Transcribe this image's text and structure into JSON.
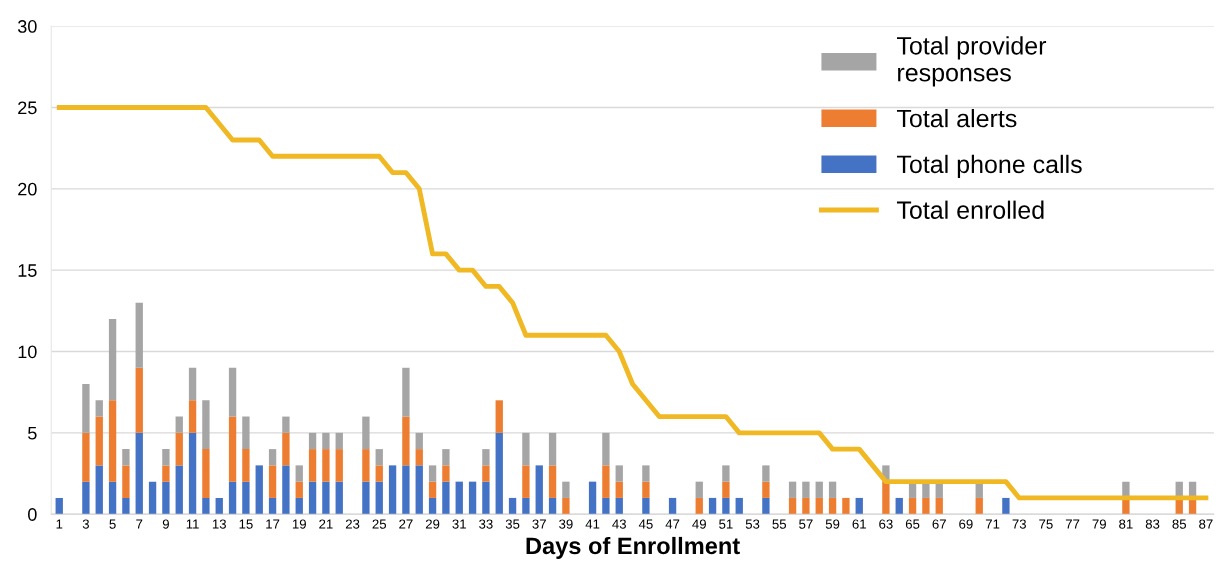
{
  "chart_data": {
    "type": "bar",
    "stacked": true,
    "xlabel": "Days of Enrollment",
    "categories": [
      "1",
      null,
      "3",
      null,
      "5",
      null,
      "7",
      null,
      "9",
      null,
      "11",
      null,
      "13",
      null,
      "15",
      null,
      "17",
      null,
      "19",
      null,
      "21",
      null,
      "23",
      null,
      "25",
      null,
      "27",
      null,
      "29",
      null,
      "31",
      null,
      "33",
      null,
      "35",
      null,
      "37",
      null,
      "39",
      null,
      "41",
      null,
      "43",
      null,
      "45",
      null,
      "47",
      null,
      "49",
      null,
      "51",
      null,
      "53",
      null,
      "55",
      null,
      "57",
      null,
      "59",
      null,
      "61",
      null,
      "63",
      null,
      "65",
      null,
      "67",
      null,
      "69",
      null,
      "71",
      null,
      "73",
      null,
      "75",
      null,
      "77",
      null,
      "79",
      null,
      "81",
      null,
      "83",
      null,
      "85",
      null,
      "87"
    ],
    "series": [
      {
        "name": "Total phone calls",
        "color": "#4472c4",
        "values": [
          1,
          null,
          2,
          3,
          2,
          1,
          5,
          2,
          2,
          3,
          5,
          1,
          1,
          2,
          2,
          3,
          1,
          3,
          1,
          2,
          2,
          2,
          null,
          2,
          2,
          3,
          3,
          3,
          1,
          2,
          2,
          2,
          2,
          5,
          1,
          1,
          3,
          1,
          null,
          null,
          2,
          1,
          1,
          null,
          1,
          null,
          1,
          null,
          null,
          1,
          1,
          1,
          null,
          1,
          null,
          null,
          null,
          null,
          null,
          null,
          1,
          null,
          null,
          1,
          null,
          null,
          null,
          null,
          null,
          null,
          null,
          1,
          null,
          null,
          null,
          null,
          null,
          null,
          null,
          null,
          null,
          null,
          null,
          null,
          null,
          null,
          null
        ]
      },
      {
        "name": "Total alerts",
        "color": "#ed7d31",
        "values": [
          null,
          null,
          3,
          3,
          5,
          2,
          4,
          null,
          1,
          2,
          2,
          3,
          null,
          4,
          2,
          null,
          2,
          2,
          1,
          2,
          2,
          2,
          null,
          2,
          1,
          null,
          3,
          1,
          1,
          1,
          null,
          null,
          1,
          2,
          null,
          2,
          null,
          2,
          1,
          null,
          null,
          2,
          1,
          null,
          1,
          null,
          null,
          null,
          1,
          null,
          1,
          null,
          null,
          1,
          null,
          1,
          1,
          1,
          1,
          1,
          null,
          null,
          2,
          null,
          1,
          1,
          1,
          null,
          null,
          1,
          null,
          null,
          null,
          null,
          null,
          null,
          null,
          null,
          null,
          null,
          1,
          null,
          null,
          null,
          1,
          1,
          null
        ]
      },
      {
        "name": "Total provider\nresponses",
        "color": "#a5a5a5",
        "values": [
          null,
          null,
          3,
          1,
          5,
          1,
          4,
          null,
          1,
          1,
          2,
          3,
          null,
          3,
          2,
          null,
          1,
          1,
          1,
          1,
          1,
          1,
          null,
          2,
          1,
          null,
          3,
          1,
          1,
          1,
          null,
          null,
          1,
          null,
          null,
          2,
          null,
          2,
          1,
          null,
          null,
          2,
          1,
          null,
          1,
          null,
          null,
          null,
          1,
          null,
          1,
          null,
          null,
          1,
          null,
          1,
          1,
          1,
          1,
          null,
          null,
          null,
          1,
          null,
          1,
          1,
          1,
          null,
          null,
          1,
          null,
          null,
          null,
          null,
          null,
          null,
          null,
          null,
          null,
          null,
          1,
          null,
          null,
          null,
          1,
          1,
          null
        ]
      },
      {
        "name": "Total enrolled",
        "type": "line",
        "color": "#f0b823",
        "values": [
          25,
          25,
          25,
          25,
          25,
          25,
          25,
          25,
          25,
          25,
          25,
          25,
          24,
          23,
          23,
          23,
          22,
          22,
          22,
          22,
          22,
          22,
          22,
          22,
          22,
          21,
          21,
          20,
          16,
          16,
          15,
          15,
          14,
          14,
          13,
          11,
          11,
          11,
          11,
          11,
          11,
          11,
          10,
          8,
          7,
          6,
          6,
          6,
          6,
          6,
          6,
          5,
          5,
          5,
          5,
          5,
          5,
          5,
          4,
          4,
          4,
          3,
          2,
          2,
          2,
          2,
          2,
          2,
          2,
          2,
          2,
          2,
          1,
          1,
          1,
          1,
          1,
          1,
          1,
          1,
          1,
          1,
          1,
          1,
          1,
          1,
          1
        ]
      }
    ],
    "ylim": [
      0,
      30
    ],
    "yticks": [
      0,
      5,
      10,
      15,
      20,
      25,
      30
    ],
    "grid": "y",
    "legend": "top right",
    "marker": "none",
    "line_style": "solid"
  }
}
